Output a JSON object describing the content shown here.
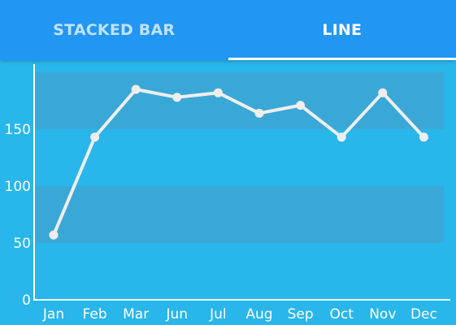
{
  "tabs": [
    {
      "label": "STACKED BAR",
      "active": false
    },
    {
      "label": "LINE",
      "active": true
    }
  ],
  "colors": {
    "tab_bar": "#2196f3",
    "background": "#29b6ea",
    "band": "#3aa8d6",
    "line": "#eeeeee",
    "axis": "#ffffff"
  },
  "chart_data": {
    "type": "line",
    "categories": [
      "Jan",
      "Feb",
      "Mar",
      "Jun",
      "Jul",
      "Aug",
      "Sep",
      "Oct",
      "Nov",
      "Dec"
    ],
    "series": [
      {
        "values": [
          57,
          143,
          185,
          178,
          182,
          164,
          171,
          143,
          182,
          143
        ]
      }
    ],
    "y_ticks": [
      0,
      50,
      100,
      150
    ],
    "ylim": [
      0,
      200
    ],
    "bands": [
      [
        50,
        100
      ],
      [
        150,
        200
      ]
    ],
    "title": "",
    "xlabel": "",
    "ylabel": "",
    "grid": false,
    "legend": "none"
  }
}
